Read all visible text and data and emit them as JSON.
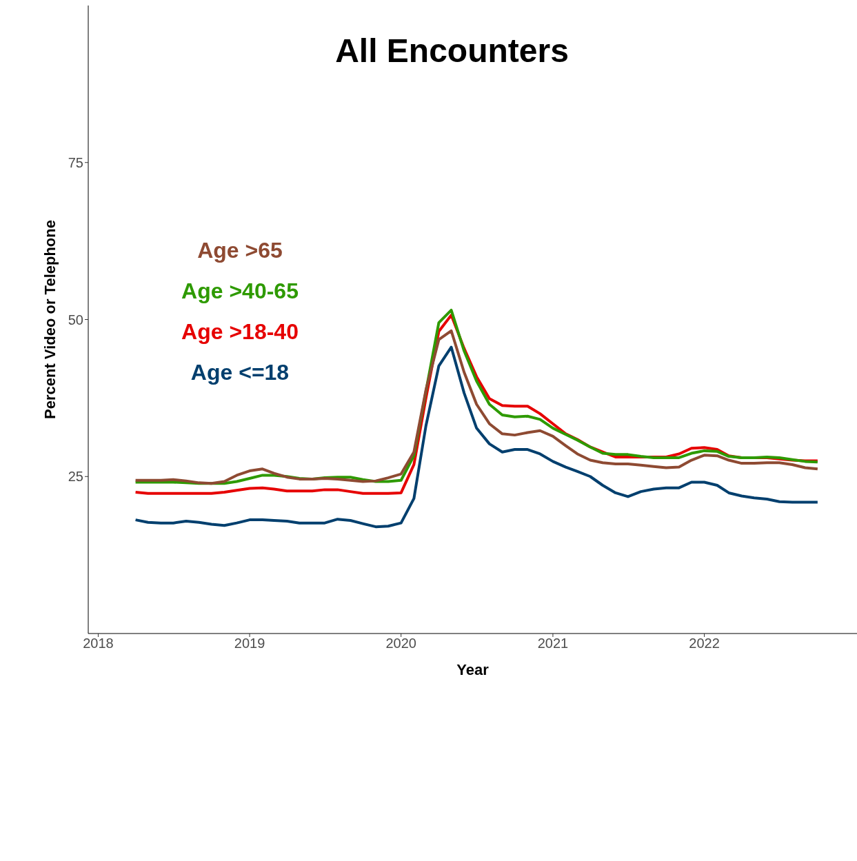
{
  "chart_data": {
    "type": "line",
    "title": "All Encounters",
    "xlabel": "Year",
    "ylabel": "Percent Video or Telephone",
    "x": [
      "2018-04",
      "2018-05",
      "2018-06",
      "2018-07",
      "2018-08",
      "2018-09",
      "2018-10",
      "2018-11",
      "2018-12",
      "2019-01",
      "2019-02",
      "2019-03",
      "2019-04",
      "2019-05",
      "2019-06",
      "2019-07",
      "2019-08",
      "2019-09",
      "2019-10",
      "2019-11",
      "2019-12",
      "2020-01",
      "2020-02",
      "2020-03",
      "2020-04",
      "2020-05",
      "2020-06",
      "2020-07",
      "2020-08",
      "2020-09",
      "2020-10",
      "2020-11",
      "2020-12",
      "2021-01",
      "2021-02",
      "2021-03",
      "2021-04",
      "2021-05",
      "2021-06",
      "2021-07",
      "2021-08",
      "2021-09",
      "2021-10",
      "2021-11",
      "2021-12",
      "2022-01",
      "2022-02",
      "2022-03",
      "2022-04",
      "2022-05",
      "2022-06",
      "2022-07",
      "2022-08",
      "2022-09",
      "2022-10"
    ],
    "series": [
      {
        "name": "Age >65",
        "color": "#8e4a32",
        "values": [
          24.4,
          24.4,
          24.4,
          24.5,
          24.3,
          24.0,
          23.9,
          24.2,
          25.2,
          25.9,
          26.2,
          25.5,
          24.9,
          24.6,
          24.6,
          24.7,
          24.6,
          24.4,
          24.2,
          24.3,
          24.8,
          25.4,
          28.9,
          38.8,
          46.8,
          48.2,
          41.6,
          36.5,
          33.4,
          31.8,
          31.6,
          32.0,
          32.3,
          31.4,
          29.9,
          28.6,
          27.6,
          27.2,
          27.0,
          27.0,
          26.8,
          26.6,
          26.4,
          26.5,
          27.6,
          28.4,
          28.3,
          27.6,
          27.1,
          27.1,
          27.2,
          27.2,
          26.9,
          26.4,
          26.2
        ]
      },
      {
        "name": "Age >40-65",
        "color": "#2e9a00",
        "values": [
          24.1,
          24.1,
          24.1,
          24.1,
          24.0,
          23.9,
          23.9,
          23.9,
          24.2,
          24.7,
          25.2,
          25.2,
          25.0,
          24.7,
          24.6,
          24.8,
          24.9,
          24.9,
          24.5,
          24.2,
          24.2,
          24.4,
          28.3,
          38.6,
          49.5,
          51.5,
          45.0,
          40.2,
          36.5,
          34.8,
          34.5,
          34.6,
          34.1,
          32.7,
          31.7,
          30.8,
          29.7,
          28.7,
          28.5,
          28.5,
          28.2,
          28.0,
          28.0,
          28.0,
          28.7,
          29.1,
          29.0,
          28.2,
          28.0,
          28.0,
          28.1,
          28.0,
          27.7,
          27.4,
          27.3
        ]
      },
      {
        "name": "Age >18-40",
        "color": "#e60000",
        "values": [
          22.5,
          22.3,
          22.3,
          22.3,
          22.3,
          22.3,
          22.3,
          22.5,
          22.8,
          23.1,
          23.2,
          23.0,
          22.7,
          22.7,
          22.7,
          22.9,
          22.9,
          22.6,
          22.3,
          22.3,
          22.3,
          22.4,
          26.9,
          37.5,
          48.1,
          50.7,
          45.4,
          40.9,
          37.4,
          36.3,
          36.2,
          36.2,
          35.0,
          33.4,
          31.8,
          30.9,
          29.7,
          28.9,
          28.1,
          28.1,
          28.1,
          28.1,
          28.1,
          28.6,
          29.5,
          29.6,
          29.3,
          28.3,
          28.0,
          28.0,
          28.0,
          27.8,
          27.6,
          27.5,
          27.5
        ]
      },
      {
        "name": "Age <=18",
        "color": "#003f6e",
        "values": [
          18.1,
          17.7,
          17.6,
          17.6,
          17.9,
          17.7,
          17.4,
          17.2,
          17.6,
          18.1,
          18.1,
          18.0,
          17.9,
          17.6,
          17.6,
          17.6,
          18.2,
          18.0,
          17.5,
          17.0,
          17.1,
          17.6,
          21.5,
          33.1,
          42.6,
          45.6,
          38.3,
          32.7,
          30.2,
          28.9,
          29.3,
          29.3,
          28.6,
          27.4,
          26.5,
          25.8,
          25.0,
          23.6,
          22.4,
          21.8,
          22.6,
          23.0,
          23.2,
          23.2,
          24.1,
          24.1,
          23.6,
          22.4,
          21.9,
          21.6,
          21.4,
          21.0,
          20.9,
          20.9,
          20.9
        ]
      }
    ],
    "xlim": [
      "2017-12-08",
      "2023-01-04"
    ],
    "xticks": [
      "2018",
      "2019",
      "2020",
      "2021",
      "2022"
    ],
    "ylim": [
      0,
      100
    ],
    "yticks": [
      25,
      50,
      75
    ],
    "grid": false,
    "legend": "top left",
    "marker": "none",
    "line_style": "solid"
  }
}
